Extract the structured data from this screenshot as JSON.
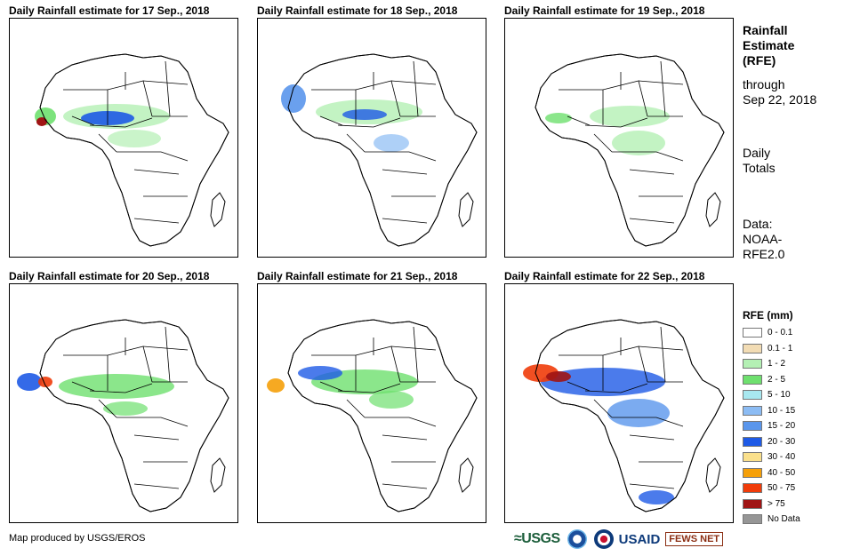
{
  "panels": [
    {
      "title": "Daily Rainfall estimate for 17 Sep., 2018"
    },
    {
      "title": "Daily Rainfall estimate for 18 Sep., 2018"
    },
    {
      "title": "Daily Rainfall estimate for 19 Sep., 2018"
    },
    {
      "title": "Daily Rainfall estimate for 20 Sep., 2018"
    },
    {
      "title": "Daily Rainfall estimate for 21 Sep., 2018"
    },
    {
      "title": "Daily Rainfall estimate for 22 Sep., 2018"
    }
  ],
  "sidebar": {
    "title1": "Rainfall",
    "title2": "Estimate",
    "title3": "(RFE)",
    "through1": "through",
    "through2": "Sep 22, 2018",
    "totals1": "Daily",
    "totals2": "Totals",
    "data1": "Data:",
    "data2": "NOAA-",
    "data3": "RFE2.0"
  },
  "legend": {
    "title": "RFE (mm)",
    "items": [
      {
        "label": "0 - 0.1",
        "color": "#ffffff"
      },
      {
        "label": "0.1 - 1",
        "color": "#f2dcb4"
      },
      {
        "label": "1 - 2",
        "color": "#b4f0b4"
      },
      {
        "label": "2 - 5",
        "color": "#6ee06e"
      },
      {
        "label": "5 - 10",
        "color": "#a8e8f0"
      },
      {
        "label": "10 - 15",
        "color": "#8cbcf4"
      },
      {
        "label": "15 - 20",
        "color": "#5a96ec"
      },
      {
        "label": "20 - 30",
        "color": "#1e5ae6"
      },
      {
        "label": "30 - 40",
        "color": "#fae08c"
      },
      {
        "label": "40 - 50",
        "color": "#f5a00a"
      },
      {
        "label": "50 - 75",
        "color": "#f03c0a"
      },
      {
        "label": "> 75",
        "color": "#a01414"
      },
      {
        "label": "No Data",
        "color": "#969696"
      }
    ]
  },
  "credit": "Map produced by USGS/EROS",
  "logos": {
    "usgs": "≈USGS",
    "usaid": "USAID",
    "fews": "FEWS NET"
  }
}
